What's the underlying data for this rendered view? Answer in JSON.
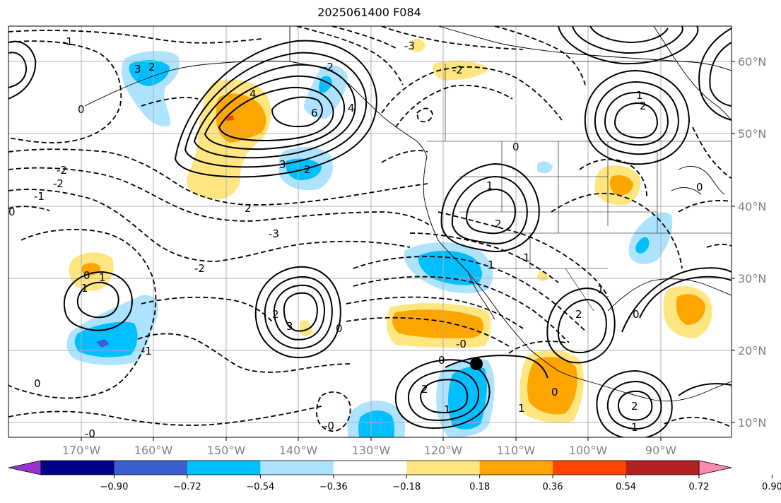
{
  "title": "2025061400 F084",
  "x_ticks": [
    "170°W",
    "160°W",
    "150°W",
    "140°W",
    "130°W",
    "120°W",
    "110°W",
    "100°W",
    "90°W"
  ],
  "y_ticks": [
    "60°N",
    "50°N",
    "40°N",
    "30°N",
    "20°N",
    "10°N"
  ],
  "colorbar": {
    "ticks": [
      "−0.90",
      "−0.72",
      "−0.54",
      "−0.36",
      "−0.18",
      "0.18",
      "0.36",
      "0.54",
      "0.72",
      "0.90"
    ],
    "colors": [
      "#9b30d0",
      "#00008b",
      "#3a5fcd",
      "#00bfff",
      "#aee3ff",
      "#ffffff",
      "#ffe680",
      "#ffa500",
      "#ff4500",
      "#b22222",
      "#ff88b0"
    ]
  },
  "contour_labels": [
    {
      "text": "3"
    },
    {
      "text": "2"
    },
    {
      "text": "4"
    },
    {
      "text": "6"
    },
    {
      "text": "4"
    },
    {
      "text": "3"
    },
    {
      "text": "2"
    },
    {
      "text": "-2"
    },
    {
      "text": "-2"
    },
    {
      "text": "-1"
    },
    {
      "text": "0"
    },
    {
      "text": "-2"
    },
    {
      "text": "-3"
    },
    {
      "text": "-2"
    },
    {
      "text": "0"
    },
    {
      "text": "1"
    },
    {
      "text": "1"
    },
    {
      "text": "2"
    },
    {
      "text": "3"
    },
    {
      "text": "-1"
    },
    {
      "text": "0"
    },
    {
      "text": "-0"
    },
    {
      "text": "2"
    },
    {
      "text": "1"
    },
    {
      "text": "0"
    },
    {
      "text": "-0"
    },
    {
      "text": "1"
    },
    {
      "text": "2"
    },
    {
      "text": "2"
    },
    {
      "text": "0"
    },
    {
      "text": "-1"
    },
    {
      "text": "2"
    },
    {
      "text": "1"
    },
    {
      "text": "-2"
    },
    {
      "text": "1"
    },
    {
      "text": "0"
    },
    {
      "text": "1"
    },
    {
      "text": "0"
    },
    {
      "text": "0"
    },
    {
      "text": "1"
    },
    {
      "text": "-0"
    },
    {
      "text": "-3"
    },
    {
      "text": "-1"
    },
    {
      "text": "0"
    },
    {
      "text": "2"
    },
    {
      "text": "0"
    },
    {
      "text": "2"
    },
    {
      "text": "1"
    }
  ]
}
